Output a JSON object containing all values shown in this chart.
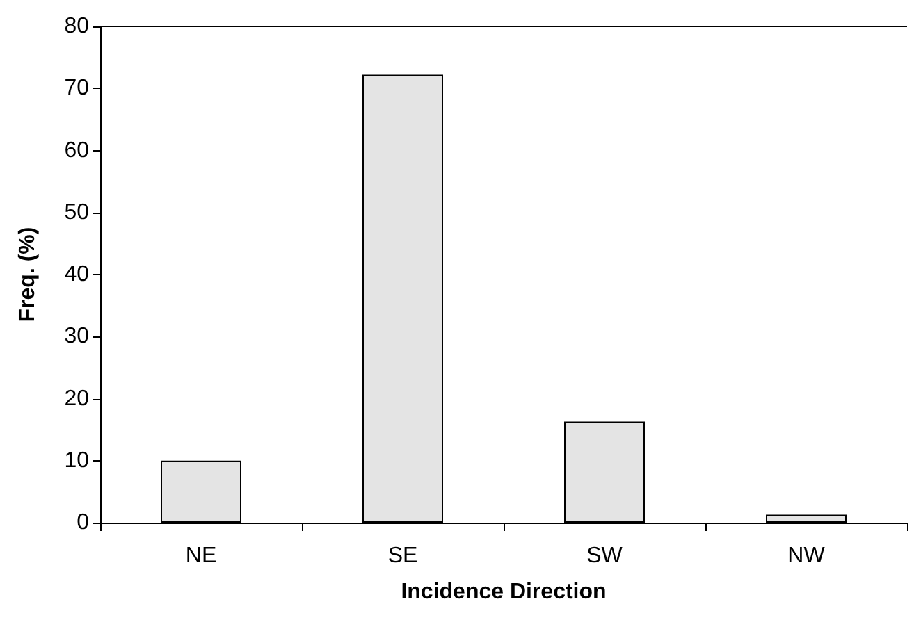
{
  "chart_data": {
    "type": "bar",
    "xlabel": "Incidence Direction",
    "ylabel": "Freq. (%)",
    "categories": [
      "NE",
      "SE",
      "SW",
      "NW"
    ],
    "values": [
      10,
      72.2,
      16.3,
      1.3
    ],
    "color": "#e4e4e4",
    "ylim": [
      0,
      80
    ],
    "yticks": [
      0,
      10,
      20,
      30,
      40,
      50,
      60,
      70,
      80
    ],
    "grid": false
  }
}
